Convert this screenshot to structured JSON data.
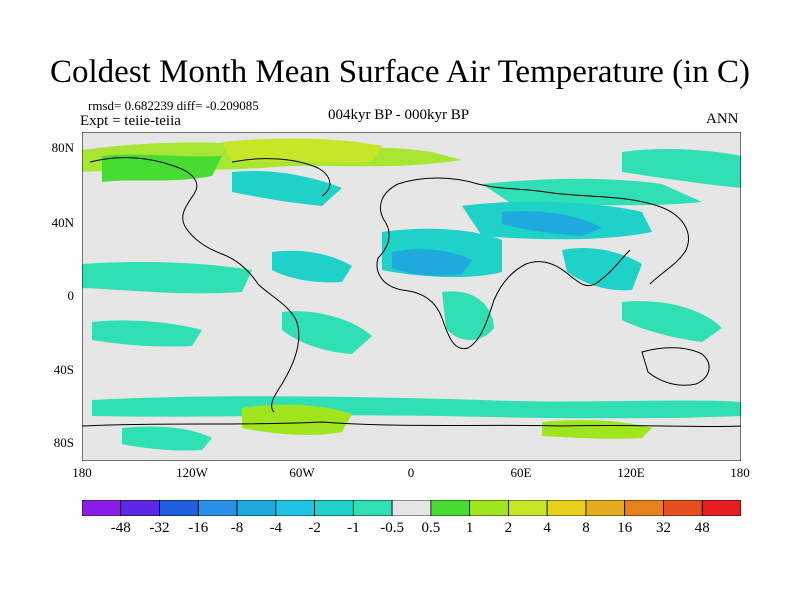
{
  "title": "Coldest Month Mean Surface Air Temperature (in C)",
  "stats": "rmsd= 0.682239 diff= -0.209085",
  "experiment": "Expt = teiie-teiia",
  "period": "004kyr BP - 000kyr BP",
  "season": "ANN",
  "lat_labels": [
    "80N",
    "40N",
    "0",
    "40S",
    "80S"
  ],
  "lon_labels": [
    "180",
    "120W",
    "60W",
    "0",
    "60E",
    "120E",
    "180"
  ],
  "colorbar": {
    "labels": [
      "-48",
      "-32",
      "-16",
      "-8",
      "-4",
      "-2",
      "-1",
      "-0.5",
      "0.5",
      "1",
      "2",
      "4",
      "8",
      "16",
      "32",
      "48"
    ],
    "colors": [
      "#8a1ee6",
      "#5a28e6",
      "#1f5fe0",
      "#2a8fe6",
      "#1eaadc",
      "#1ec3e6",
      "#1ed2c8",
      "#30e0b4",
      "#e6e6e6",
      "#46dc32",
      "#a0e61e",
      "#c8e628",
      "#e6d21e",
      "#e6aa1e",
      "#e6821e",
      "#e6501e",
      "#e61e1e"
    ]
  },
  "legend_note": ""
}
